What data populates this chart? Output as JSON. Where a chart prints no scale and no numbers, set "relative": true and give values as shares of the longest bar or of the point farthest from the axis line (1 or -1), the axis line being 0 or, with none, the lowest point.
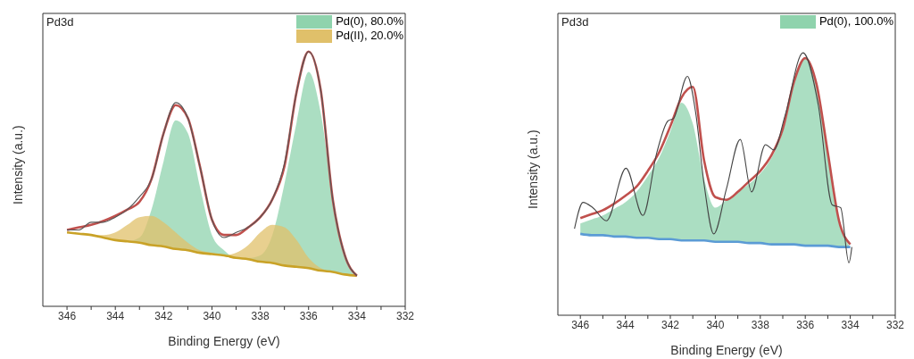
{
  "chart_data": [
    {
      "type": "area",
      "title": "Pd3d",
      "xlabel": "Binding Energy (eV)",
      "ylabel": "Intensity (a.u.)",
      "relative": true,
      "tick_labels": "x",
      "legend": "top right",
      "x": [
        346,
        345.5,
        345,
        344.5,
        344,
        343.5,
        343,
        342.5,
        342,
        341.5,
        341,
        340.5,
        340,
        339.5,
        339,
        338.5,
        338,
        337.5,
        337,
        336.5,
        336,
        335.5,
        335,
        334.5,
        334
      ],
      "xlim": [
        347,
        332
      ],
      "xticks": [
        346,
        {
          "value": 345,
          "label": null
        },
        344,
        {
          "value": 343,
          "label": null
        },
        342,
        {
          "value": 341,
          "label": null
        },
        340,
        {
          "value": 339,
          "label": null
        },
        338,
        {
          "value": 337,
          "label": null
        },
        336,
        {
          "value": 335,
          "label": null
        },
        334,
        {
          "value": 333,
          "label": null
        },
        332
      ],
      "series": [
        {
          "type": "line",
          "color": "#c9a227",
          "values": [
            0.29,
            0.285,
            0.28,
            0.27,
            0.26,
            0.255,
            0.25,
            0.24,
            0.235,
            0.225,
            0.22,
            0.21,
            0.205,
            0.2,
            0.19,
            0.185,
            0.175,
            0.17,
            0.16,
            0.155,
            0.15,
            0.14,
            0.135,
            0.125,
            0.12
          ]
        },
        {
          "name": "Pd(0), 80.0%",
          "color": "#8fd3ad",
          "values": [
            0.29,
            0.285,
            0.28,
            0.27,
            0.26,
            0.255,
            0.27,
            0.38,
            0.57,
            0.73,
            0.68,
            0.47,
            0.28,
            0.22,
            0.19,
            0.19,
            0.2,
            0.28,
            0.48,
            0.72,
            0.92,
            0.76,
            0.43,
            0.2,
            0.12
          ]
        },
        {
          "name": "Pd(II), 20.0%",
          "color": "#e0c06a",
          "values": [
            0.29,
            0.285,
            0.28,
            0.28,
            0.29,
            0.32,
            0.35,
            0.355,
            0.33,
            0.29,
            0.25,
            0.22,
            0.21,
            0.2,
            0.21,
            0.24,
            0.29,
            0.32,
            0.31,
            0.26,
            0.19,
            0.15,
            0.135,
            0.125,
            0.12
          ]
        },
        {
          "type": "line",
          "color": "#c0504d",
          "values": [
            0.3,
            0.31,
            0.32,
            0.335,
            0.355,
            0.38,
            0.41,
            0.5,
            0.68,
            0.79,
            0.74,
            0.55,
            0.34,
            0.28,
            0.28,
            0.31,
            0.35,
            0.42,
            0.55,
            0.84,
            1,
            0.85,
            0.42,
            0.2,
            0.12
          ]
        },
        {
          "type": "line",
          "color": "#555555",
          "values": [
            0.3,
            0.3,
            0.33,
            0.33,
            0.35,
            0.38,
            0.43,
            0.5,
            0.68,
            0.8,
            0.74,
            0.55,
            0.34,
            0.27,
            0.29,
            0.31,
            0.35,
            0.42,
            0.56,
            0.84,
            1,
            0.85,
            0.42,
            0.2,
            0.12
          ]
        }
      ]
    },
    {
      "type": "area",
      "title": "Pd3d",
      "xlabel": "Binding Energy (eV)",
      "ylabel": "Intensity (a.u.)",
      "relative": true,
      "tick_labels": "x",
      "legend": "top right",
      "x": [
        346,
        345.5,
        345,
        344.5,
        344,
        343.5,
        343,
        342.5,
        342,
        341.5,
        341,
        340.5,
        340,
        339.5,
        339,
        338.5,
        338,
        337.5,
        337,
        336.5,
        336,
        335.5,
        335,
        334.5,
        334
      ],
      "xlim": [
        347,
        332
      ],
      "xticks": [
        346,
        {
          "value": 345,
          "label": null
        },
        344,
        {
          "value": 343,
          "label": null
        },
        342,
        {
          "value": 341,
          "label": null
        },
        340,
        {
          "value": 339,
          "label": null
        },
        338,
        {
          "value": 337,
          "label": null
        },
        336,
        {
          "value": 335,
          "label": null
        },
        334,
        {
          "value": 333,
          "label": null
        },
        332
      ],
      "series": [
        {
          "type": "line",
          "color": "#5b9bd5",
          "values": [
            0.31,
            0.305,
            0.305,
            0.3,
            0.3,
            0.295,
            0.295,
            0.29,
            0.29,
            0.285,
            0.285,
            0.285,
            0.28,
            0.28,
            0.28,
            0.275,
            0.275,
            0.27,
            0.27,
            0.27,
            0.265,
            0.265,
            0.265,
            0.26,
            0.26
          ]
        },
        {
          "name": "Pd(0), 100.0%",
          "color": "#8fd3ad",
          "values": [
            0.35,
            0.365,
            0.38,
            0.405,
            0.43,
            0.47,
            0.53,
            0.6,
            0.7,
            0.81,
            0.73,
            0.52,
            0.41,
            0.44,
            0.47,
            0.5,
            0.54,
            0.6,
            0.7,
            0.88,
            0.98,
            0.88,
            0.62,
            0.36,
            0.26
          ]
        },
        {
          "type": "line",
          "color": "#c0504d",
          "values": [
            0.37,
            0.385,
            0.4,
            0.425,
            0.455,
            0.49,
            0.55,
            0.62,
            0.72,
            0.83,
            0.87,
            0.59,
            0.45,
            0.44,
            0.47,
            0.51,
            0.55,
            0.61,
            0.71,
            0.89,
            0.98,
            0.88,
            0.62,
            0.36,
            0.27
          ]
        },
        {
          "type": "line",
          "color": "#444444",
          "x": [
            346.26,
            345.88,
            345.45,
            344.84,
            343.97,
            343.22,
            342.6,
            342.11,
            341.86,
            341.24,
            340.87,
            340.5,
            340.07,
            339.51,
            338.89,
            338.39,
            337.77,
            337.4,
            336.9,
            336.1,
            335.42,
            334.8,
            334.43,
            334.06,
            333.93
          ],
          "values": [
            0.33,
            0.43,
            0.41,
            0.36,
            0.56,
            0.38,
            0.62,
            0.74,
            0.75,
            0.91,
            0.77,
            0.5,
            0.31,
            0.48,
            0.67,
            0.47,
            0.65,
            0.63,
            0.76,
            1,
            0.8,
            0.42,
            0.41,
            0.2,
            0.26
          ]
        }
      ]
    }
  ]
}
